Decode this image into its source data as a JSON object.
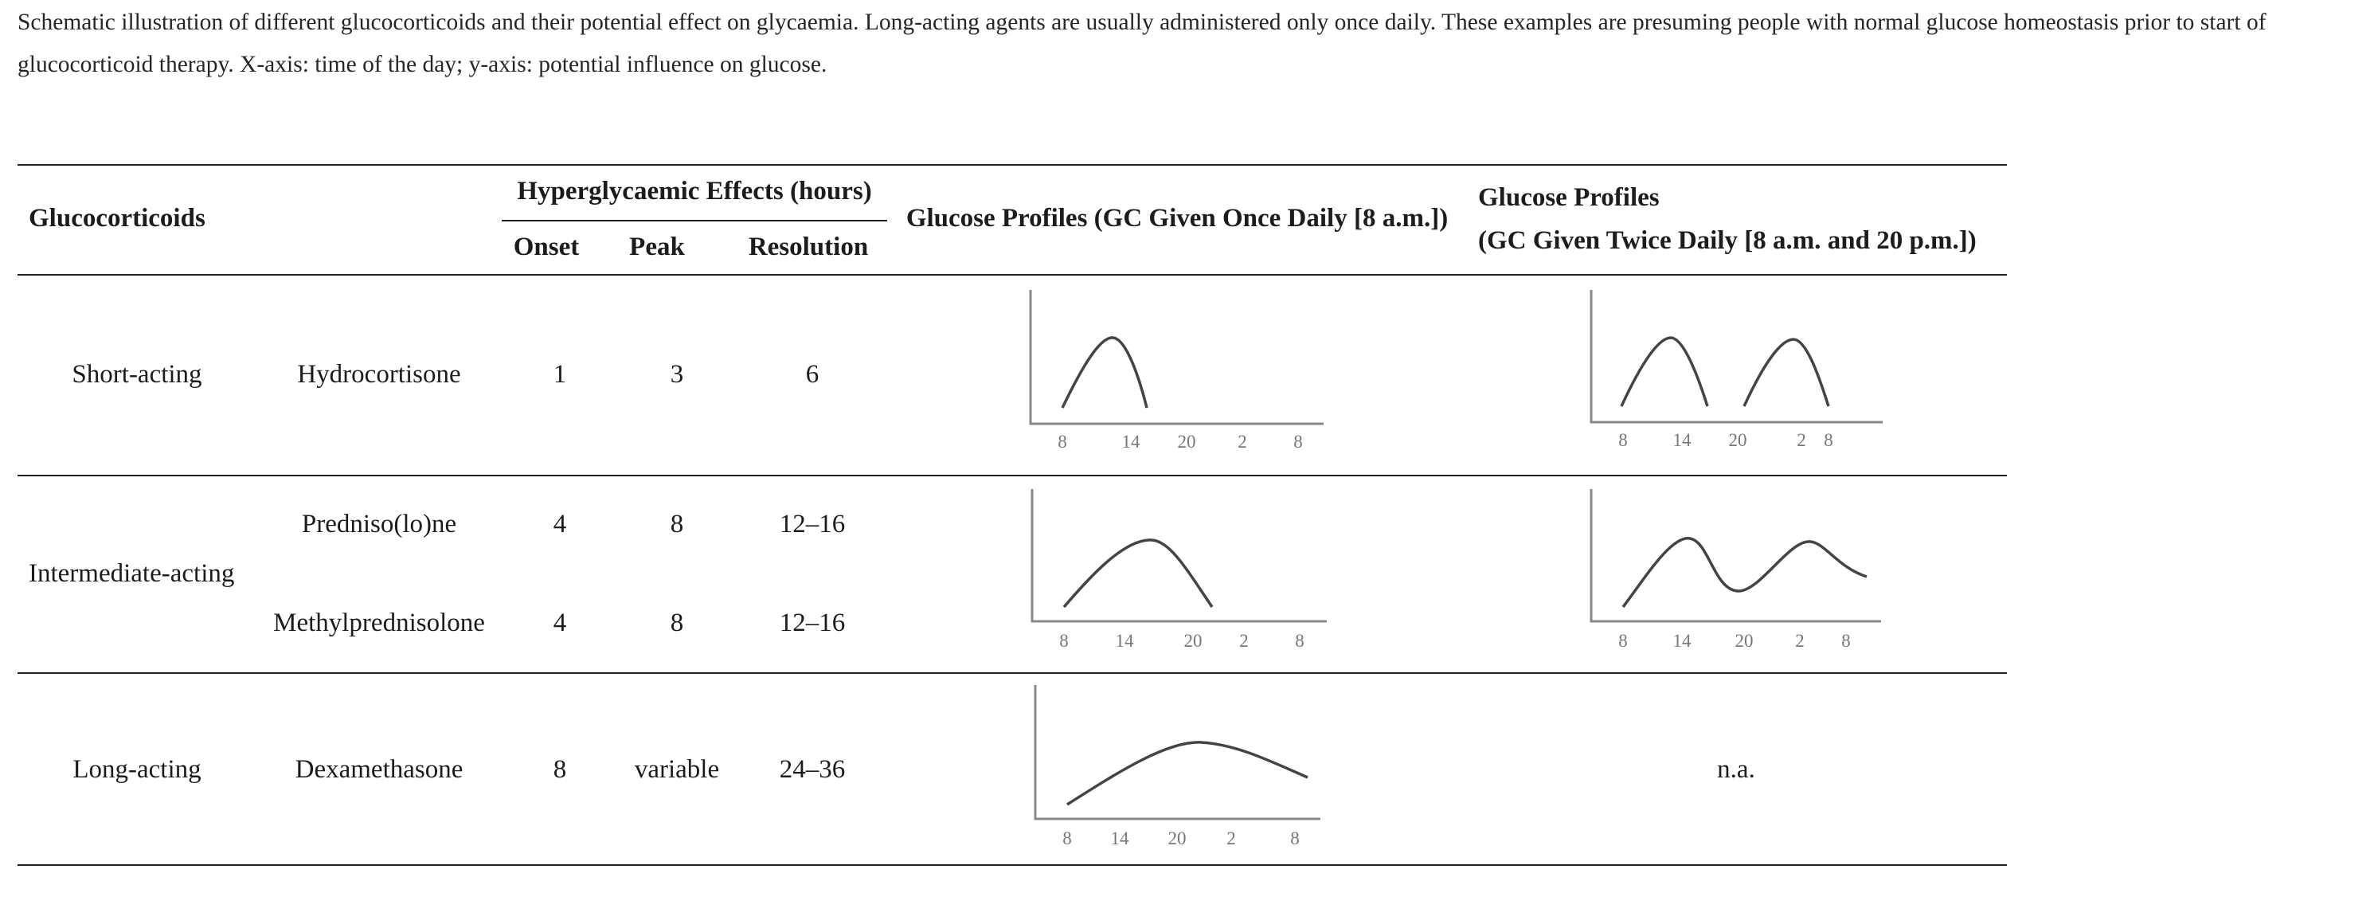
{
  "caption": "Schematic illustration of different glucocorticoids and their potential effect on glycaemia. Long-acting agents are usually administered only once daily. These examples are presuming people with normal glucose homeostasis prior to start of glucocorticoid therapy. X-axis: time of the day; y-axis: potential influence on glucose.",
  "header": {
    "glucocorticoids": "Glucocorticoids",
    "hyper_effects": "Hyperglycaemic Effects (hours)",
    "onset": "Onset",
    "peak": "Peak",
    "resolution": "Resolution",
    "profile_once": "Glucose Profiles (GC Given Once Daily [8 a.m.])",
    "profile_twice_line1": "Glucose Profiles",
    "profile_twice_line2": "(GC Given Twice Daily [8 a.m. and 20 p.m.])"
  },
  "groups": [
    {
      "category": "Short-acting",
      "drugs": [
        {
          "name": "Hydrocortisone",
          "onset": "1",
          "peak": "3",
          "resolution": "6"
        }
      ],
      "profile_twice_text": ""
    },
    {
      "category": "Intermediate-acting",
      "drugs": [
        {
          "name": "Predniso(lo)ne",
          "onset": "4",
          "peak": "8",
          "resolution": "12–16"
        },
        {
          "name": "Methylprednisolone",
          "onset": "4",
          "peak": "8",
          "resolution": "12–16"
        }
      ],
      "profile_twice_text": ""
    },
    {
      "category": "Long-acting",
      "drugs": [
        {
          "name": "Dexamethasone",
          "onset": "8",
          "peak": "variable",
          "resolution": "24–36"
        }
      ],
      "profile_twice_text": "n.a."
    }
  ],
  "x_ticks": [
    "8",
    "14",
    "20",
    "2",
    "8"
  ],
  "colors": {
    "curve": "#444444",
    "axis": "#888888",
    "rule": "#222222"
  }
}
